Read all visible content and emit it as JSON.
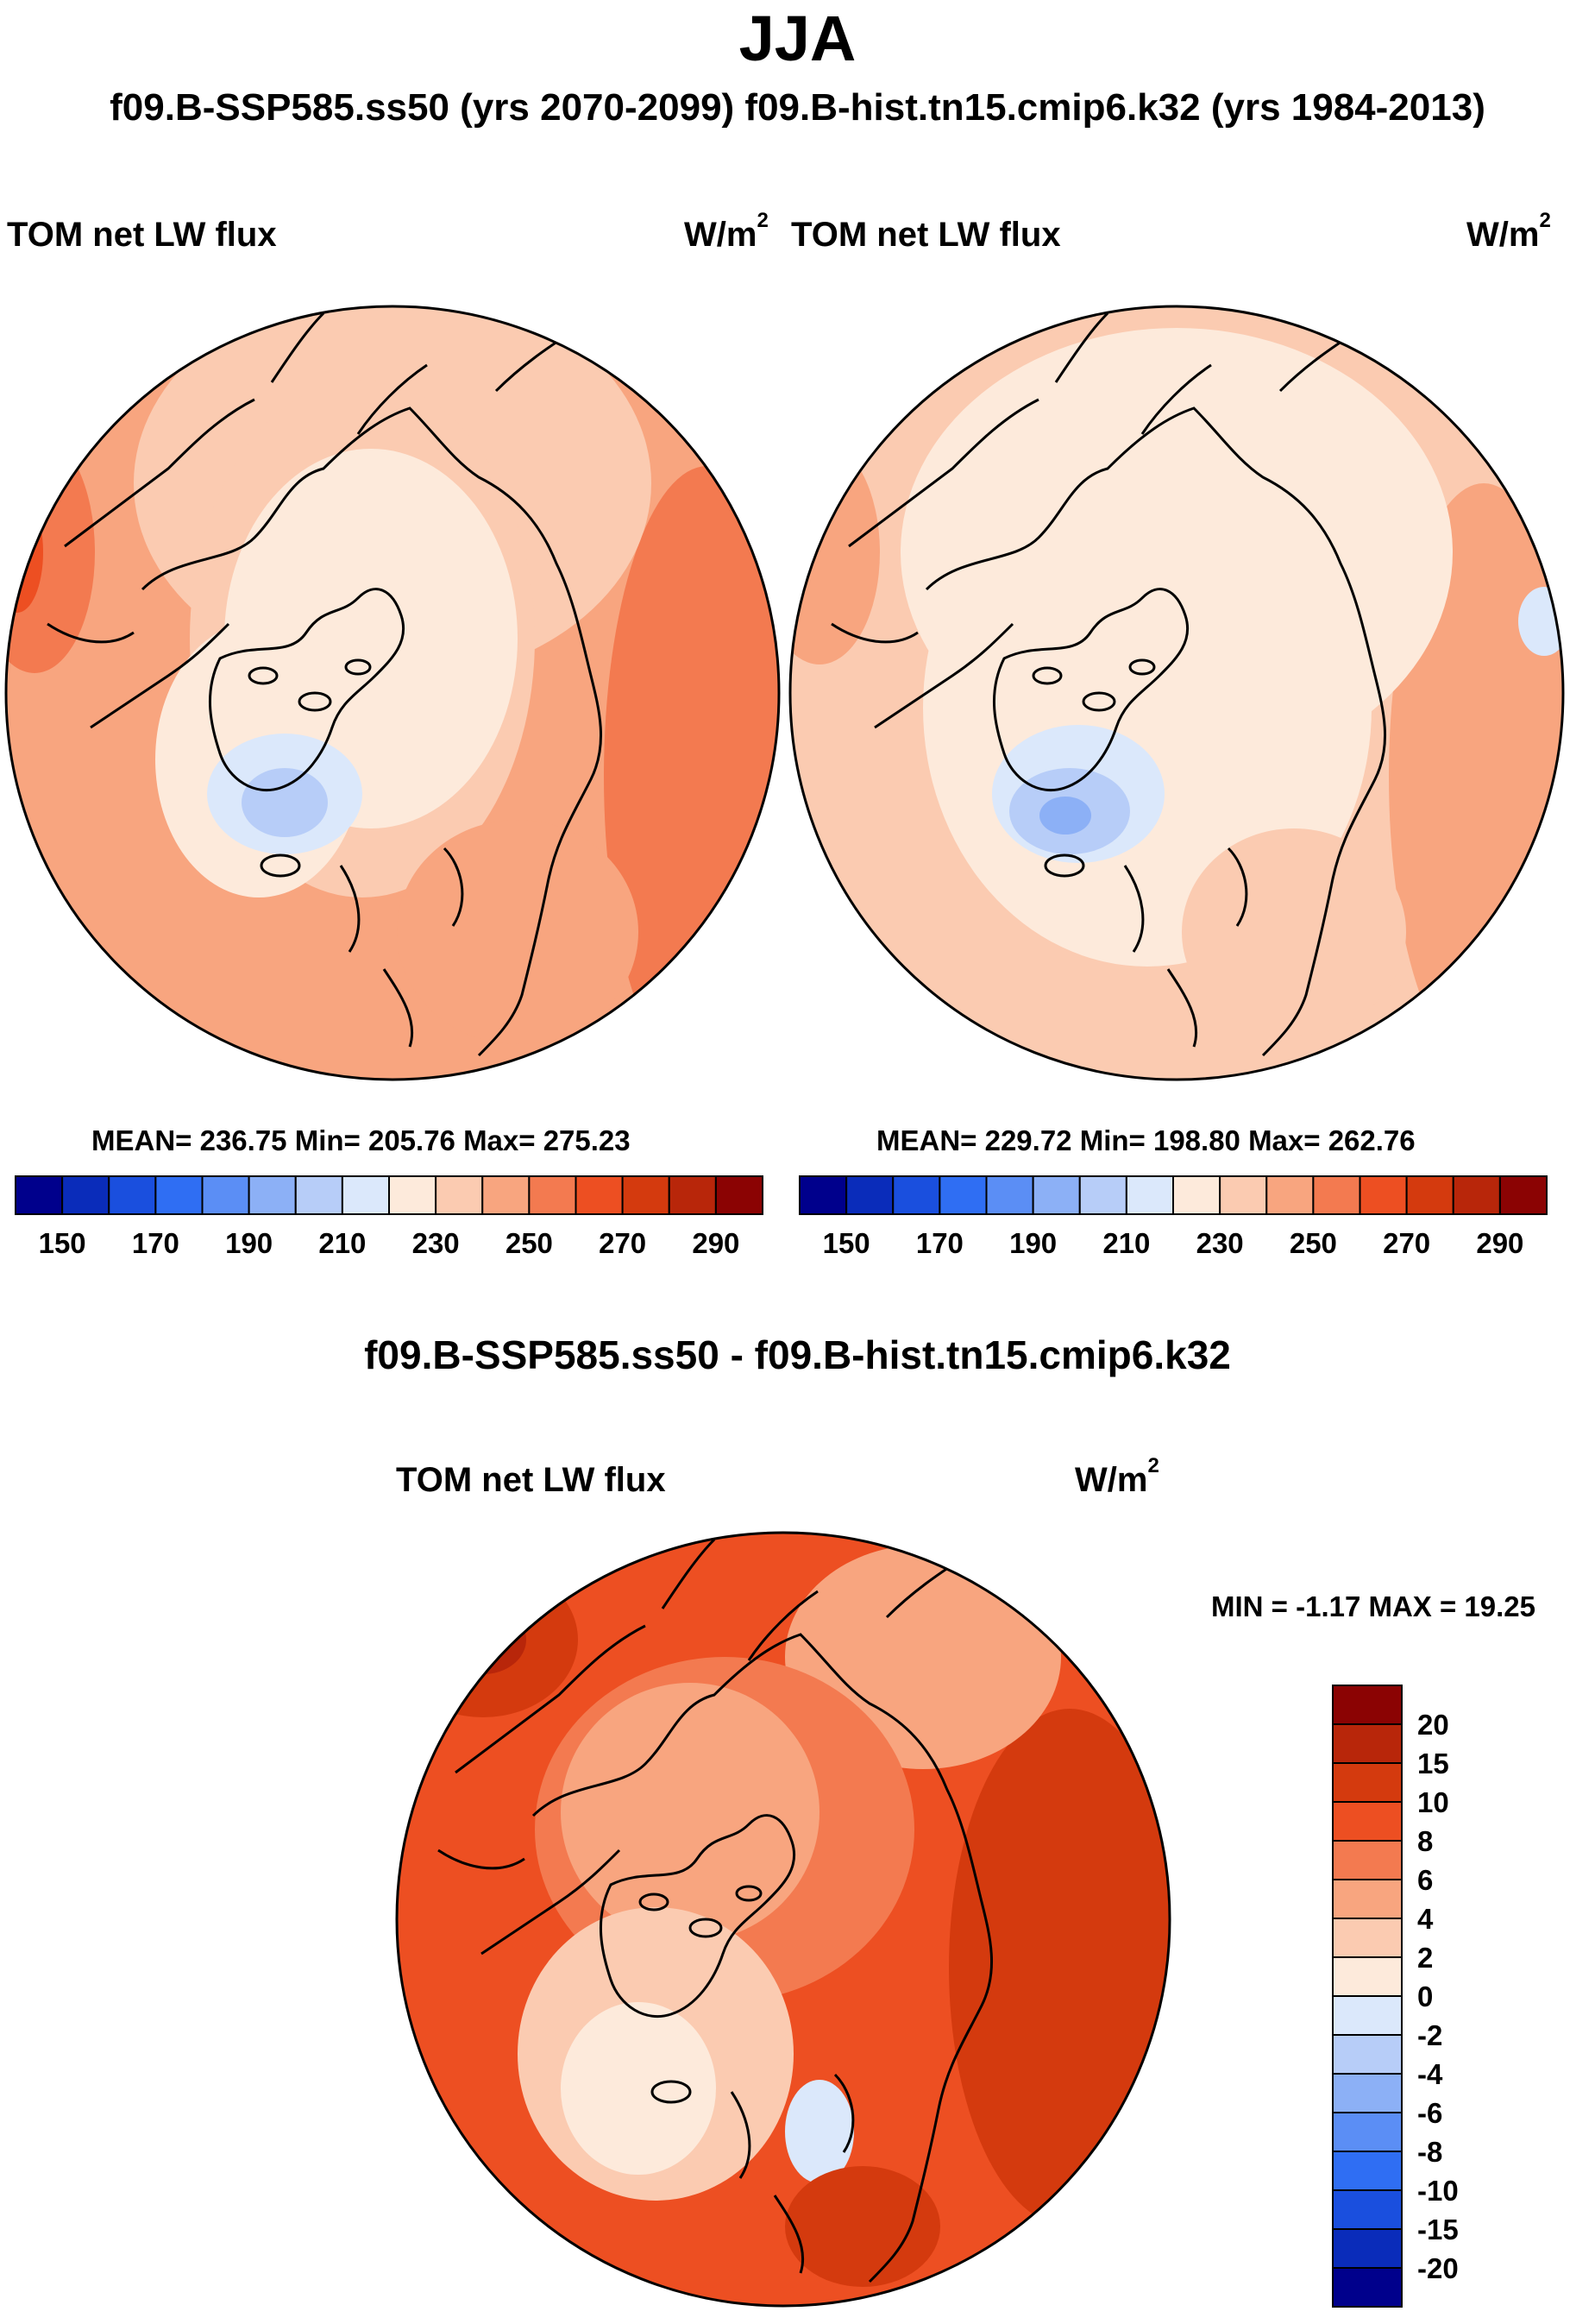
{
  "header": {
    "season": "JJA",
    "subtitle": "f09.B-SSP585.ss50 (yrs 2070-2099)  f09.B-hist.tn15.cmip6.k32 (yrs 1984-2013)"
  },
  "panels": [
    {
      "variable": "TOM net LW flux",
      "units_base": "W/m",
      "units_exp": "2",
      "stats": "MEAN= 236.75  Min= 205.76  Max= 275.23"
    },
    {
      "variable": "TOM net LW flux",
      "units_base": "W/m",
      "units_exp": "2",
      "stats": "MEAN= 229.72  Min= 198.80  Max= 262.76"
    }
  ],
  "abs_colorbar": {
    "colors": [
      "#00008c",
      "#0a2cba",
      "#1a4fde",
      "#2f6ef3",
      "#5b8ef5",
      "#8cb0f6",
      "#b7cdf8",
      "#dbe8fb",
      "#fdeadb",
      "#fbcbb1",
      "#f8a57f",
      "#f37a50",
      "#ed4f22",
      "#d43a0e",
      "#b8260a",
      "#8b0303"
    ],
    "tick_labels": [
      "150",
      "170",
      "190",
      "210",
      "230",
      "250",
      "270",
      "290"
    ]
  },
  "difference": {
    "title": "f09.B-SSP585.ss50 - f09.B-hist.tn15.cmip6.k32",
    "variable": "TOM net LW flux",
    "units_base": "W/m",
    "units_exp": "2",
    "minmax": "MIN =  -1.17 MAX =  19.25",
    "colorbar": {
      "colors_top_to_bottom": [
        "#8b0303",
        "#b8260a",
        "#d43a0e",
        "#ed4f22",
        "#f37a50",
        "#f8a57f",
        "#fbcbb1",
        "#fdeadb",
        "#dbe8fb",
        "#b7cdf8",
        "#8cb0f6",
        "#5b8ef5",
        "#2f6ef3",
        "#1a4fde",
        "#0a2cba",
        "#00008c"
      ],
      "tick_labels": [
        "20",
        "15",
        "10",
        "8",
        "6",
        "4",
        "2",
        "0",
        "-2",
        "-4",
        "-6",
        "-8",
        "-10",
        "-15",
        "-20"
      ]
    }
  }
}
